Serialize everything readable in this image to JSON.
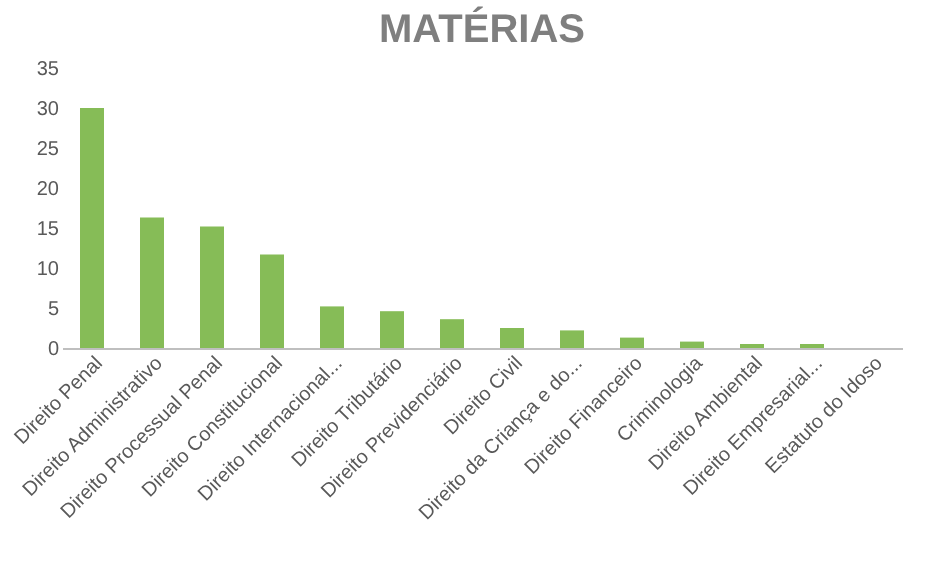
{
  "chart_data": {
    "type": "bar",
    "title": "MATÉRIAS",
    "categories": [
      "Direito Penal",
      "Direito Administrativo",
      "Direito Processual Penal",
      "Direito Constitucional",
      "Direito Internacional...",
      "Direito Tributário",
      "Direito Previdenciário",
      "Direito Civil",
      "Direito da Criança e do...",
      "Direito Financeiro",
      "Criminologia",
      "Direito Ambiental",
      "Direito Empresarial...",
      "Estatuto do Idoso"
    ],
    "values": [
      30,
      16.3,
      15.2,
      11.7,
      5.2,
      4.6,
      3.6,
      2.5,
      2.2,
      1.3,
      0.8,
      0.5,
      0.5,
      0
    ],
    "color": "#86bc57",
    "ylim": [
      0,
      35
    ],
    "yticks": [
      0,
      5,
      10,
      15,
      20,
      25,
      30,
      35
    ],
    "grid": false
  }
}
